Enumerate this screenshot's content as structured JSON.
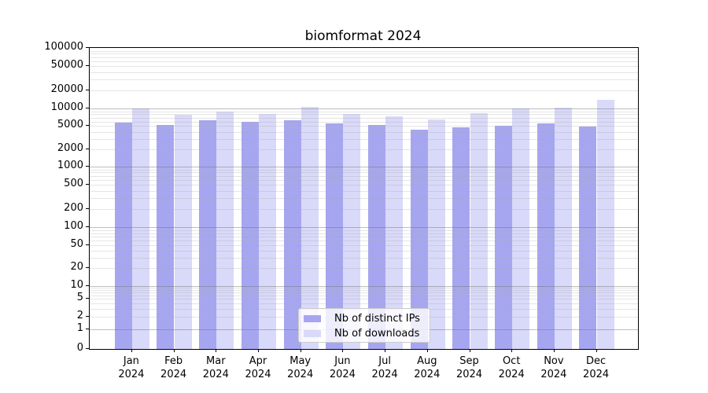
{
  "figure": {
    "background": "#ffffff"
  },
  "chart_data": {
    "type": "bar",
    "title": "biomformat 2024",
    "categories": [
      "Jan",
      "Feb",
      "Mar",
      "Apr",
      "May",
      "Jun",
      "Jul",
      "Aug",
      "Sep",
      "Oct",
      "Nov",
      "Dec"
    ],
    "year_label": "2024",
    "series": [
      {
        "name": "Nb of distinct IPs",
        "color": "#a6a6f0",
        "values": [
          5620,
          5190,
          6300,
          5880,
          6320,
          5570,
          5120,
          4340,
          4770,
          5030,
          5460,
          4810
        ]
      },
      {
        "name": "Nb of downloads",
        "color": "#d9d9f9",
        "values": [
          9900,
          7860,
          8890,
          8040,
          10640,
          8000,
          7390,
          6430,
          8300,
          10000,
          10410,
          13690
        ]
      }
    ],
    "yscale": "symlog",
    "ylim": [
      0,
      100000
    ],
    "yticks": [
      100000,
      50000,
      20000,
      10000,
      5000,
      2000,
      1000,
      500,
      200,
      100,
      50,
      20,
      10,
      5,
      2,
      1,
      0
    ],
    "grid": "horizontal, major gray + minor light",
    "legend_position": "lower center",
    "legend_labels": [
      "Nb of distinct IPs",
      "Nb of downloads"
    ]
  }
}
